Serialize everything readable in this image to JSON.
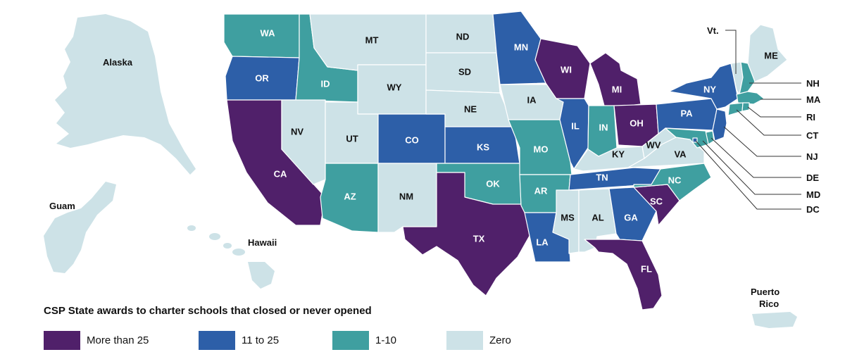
{
  "legend": {
    "title": "CSP State awards to charter schools that closed or never opened",
    "items": [
      {
        "label": "More than 25",
        "color": "#50206a"
      },
      {
        "label": "11 to 25",
        "color": "#2d5fa8"
      },
      {
        "label": "1-10",
        "color": "#3f9fa0"
      },
      {
        "label": "Zero",
        "color": "#cde2e7"
      }
    ]
  },
  "territories": {
    "alaska": "Alaska",
    "hawaii": "Hawaii",
    "guam": "Guam",
    "puerto_rico": [
      "Puerto",
      "Rico"
    ]
  },
  "external_labels": {
    "vt": "Vt.",
    "nh": "NH",
    "ma": "MA",
    "ri": "RI",
    "ct": "CT",
    "nj": "NJ",
    "de": "DE",
    "md": "MD",
    "dc": "DC"
  },
  "states": [
    {
      "abbr": "WA",
      "category": "1-10"
    },
    {
      "abbr": "OR",
      "category": "11 to 25"
    },
    {
      "abbr": "CA",
      "category": "More than 25"
    },
    {
      "abbr": "ID",
      "category": "1-10"
    },
    {
      "abbr": "NV",
      "category": "Zero"
    },
    {
      "abbr": "MT",
      "category": "Zero"
    },
    {
      "abbr": "WY",
      "category": "Zero"
    },
    {
      "abbr": "UT",
      "category": "Zero"
    },
    {
      "abbr": "AZ",
      "category": "1-10"
    },
    {
      "abbr": "CO",
      "category": "11 to 25"
    },
    {
      "abbr": "NM",
      "category": "Zero"
    },
    {
      "abbr": "ND",
      "category": "Zero"
    },
    {
      "abbr": "SD",
      "category": "Zero"
    },
    {
      "abbr": "NE",
      "category": "Zero"
    },
    {
      "abbr": "KS",
      "category": "11 to 25"
    },
    {
      "abbr": "OK",
      "category": "1-10"
    },
    {
      "abbr": "TX",
      "category": "More than 25"
    },
    {
      "abbr": "MN",
      "category": "11 to 25"
    },
    {
      "abbr": "IA",
      "category": "Zero"
    },
    {
      "abbr": "MO",
      "category": "1-10"
    },
    {
      "abbr": "AR",
      "category": "1-10"
    },
    {
      "abbr": "LA",
      "category": "11 to 25"
    },
    {
      "abbr": "WI",
      "category": "More than 25"
    },
    {
      "abbr": "IL",
      "category": "11 to 25"
    },
    {
      "abbr": "MI",
      "category": "More than 25"
    },
    {
      "abbr": "IN",
      "category": "1-10"
    },
    {
      "abbr": "OH",
      "category": "More than 25"
    },
    {
      "abbr": "KY",
      "category": "Zero"
    },
    {
      "abbr": "TN",
      "category": "11 to 25"
    },
    {
      "abbr": "MS",
      "category": "Zero"
    },
    {
      "abbr": "AL",
      "category": "Zero"
    },
    {
      "abbr": "GA",
      "category": "11 to 25"
    },
    {
      "abbr": "FL",
      "category": "More than 25"
    },
    {
      "abbr": "SC",
      "category": "More than 25"
    },
    {
      "abbr": "NC",
      "category": "1-10"
    },
    {
      "abbr": "VA",
      "category": "Zero"
    },
    {
      "abbr": "WV",
      "category": "Zero"
    },
    {
      "abbr": "PA",
      "category": "11 to 25"
    },
    {
      "abbr": "NY",
      "category": "11 to 25"
    },
    {
      "abbr": "ME",
      "category": "Zero"
    },
    {
      "abbr": "VT",
      "category": "Zero"
    },
    {
      "abbr": "NH",
      "category": "1-10"
    },
    {
      "abbr": "MA",
      "category": "1-10"
    },
    {
      "abbr": "CT",
      "category": "1-10"
    },
    {
      "abbr": "RI",
      "category": "1-10"
    },
    {
      "abbr": "NJ",
      "category": "11 to 25"
    },
    {
      "abbr": "DE",
      "category": "1-10"
    },
    {
      "abbr": "MD",
      "category": "1-10"
    },
    {
      "abbr": "DC",
      "category": "11 to 25"
    }
  ]
}
